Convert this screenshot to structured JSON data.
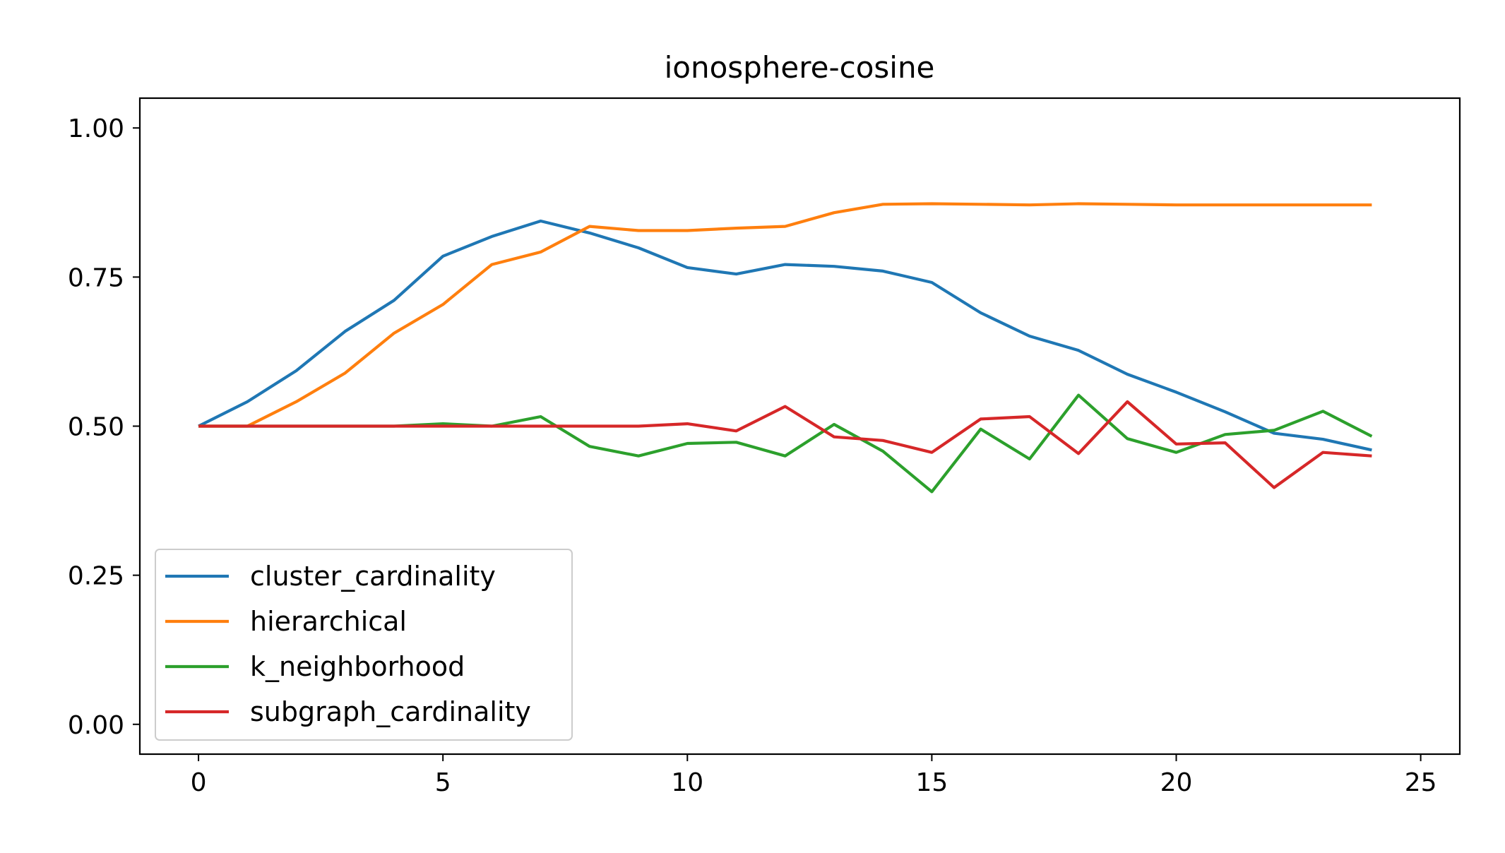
{
  "chart_data": {
    "type": "line",
    "title": "ionosphere-cosine",
    "xlabel": "",
    "ylabel": "",
    "xlim": [
      -1.2,
      25.8
    ],
    "ylim": [
      -0.05,
      1.05
    ],
    "xticks": [
      0,
      5,
      10,
      15,
      20,
      25
    ],
    "xtick_labels": [
      "0",
      "5",
      "10",
      "15",
      "20",
      "25"
    ],
    "yticks": [
      0.0,
      0.25,
      0.5,
      0.75,
      1.0
    ],
    "ytick_labels": [
      "0.00",
      "0.25",
      "0.50",
      "0.75",
      "1.00"
    ],
    "grid": false,
    "legend_position": "lower-left",
    "x": [
      0,
      1,
      2,
      3,
      4,
      5,
      6,
      7,
      8,
      9,
      10,
      11,
      12,
      13,
      14,
      15,
      16,
      17,
      18,
      19,
      20,
      21,
      22,
      23,
      24
    ],
    "series": [
      {
        "name": "cluster_cardinality",
        "color": "#1f77b4",
        "values": [
          0.5,
          0.541,
          0.593,
          0.659,
          0.711,
          0.785,
          0.818,
          0.844,
          0.824,
          0.799,
          0.766,
          0.755,
          0.771,
          0.768,
          0.76,
          0.741,
          0.69,
          0.651,
          0.627,
          0.587,
          0.557,
          0.524,
          0.488,
          0.478,
          0.46
        ]
      },
      {
        "name": "hierarchical",
        "color": "#ff7f0e",
        "values": [
          0.5,
          0.5,
          0.541,
          0.589,
          0.656,
          0.704,
          0.771,
          0.792,
          0.835,
          0.828,
          0.828,
          0.832,
          0.835,
          0.858,
          0.872,
          0.873,
          0.872,
          0.871,
          0.873,
          0.872,
          0.871,
          0.871,
          0.871,
          0.871,
          0.871
        ]
      },
      {
        "name": "k_neighborhood",
        "color": "#2ca02c",
        "values": [
          0.5,
          0.5,
          0.5,
          0.5,
          0.5,
          0.504,
          0.5,
          0.516,
          0.466,
          0.45,
          0.471,
          0.473,
          0.45,
          0.503,
          0.458,
          0.39,
          0.495,
          0.445,
          0.552,
          0.479,
          0.456,
          0.486,
          0.493,
          0.525,
          0.483
        ]
      },
      {
        "name": "subgraph_cardinality",
        "color": "#d62728",
        "values": [
          0.5,
          0.5,
          0.5,
          0.5,
          0.5,
          0.5,
          0.5,
          0.5,
          0.5,
          0.5,
          0.504,
          0.492,
          0.533,
          0.482,
          0.476,
          0.456,
          0.512,
          0.516,
          0.454,
          0.541,
          0.47,
          0.472,
          0.397,
          0.456,
          0.45
        ]
      }
    ]
  }
}
